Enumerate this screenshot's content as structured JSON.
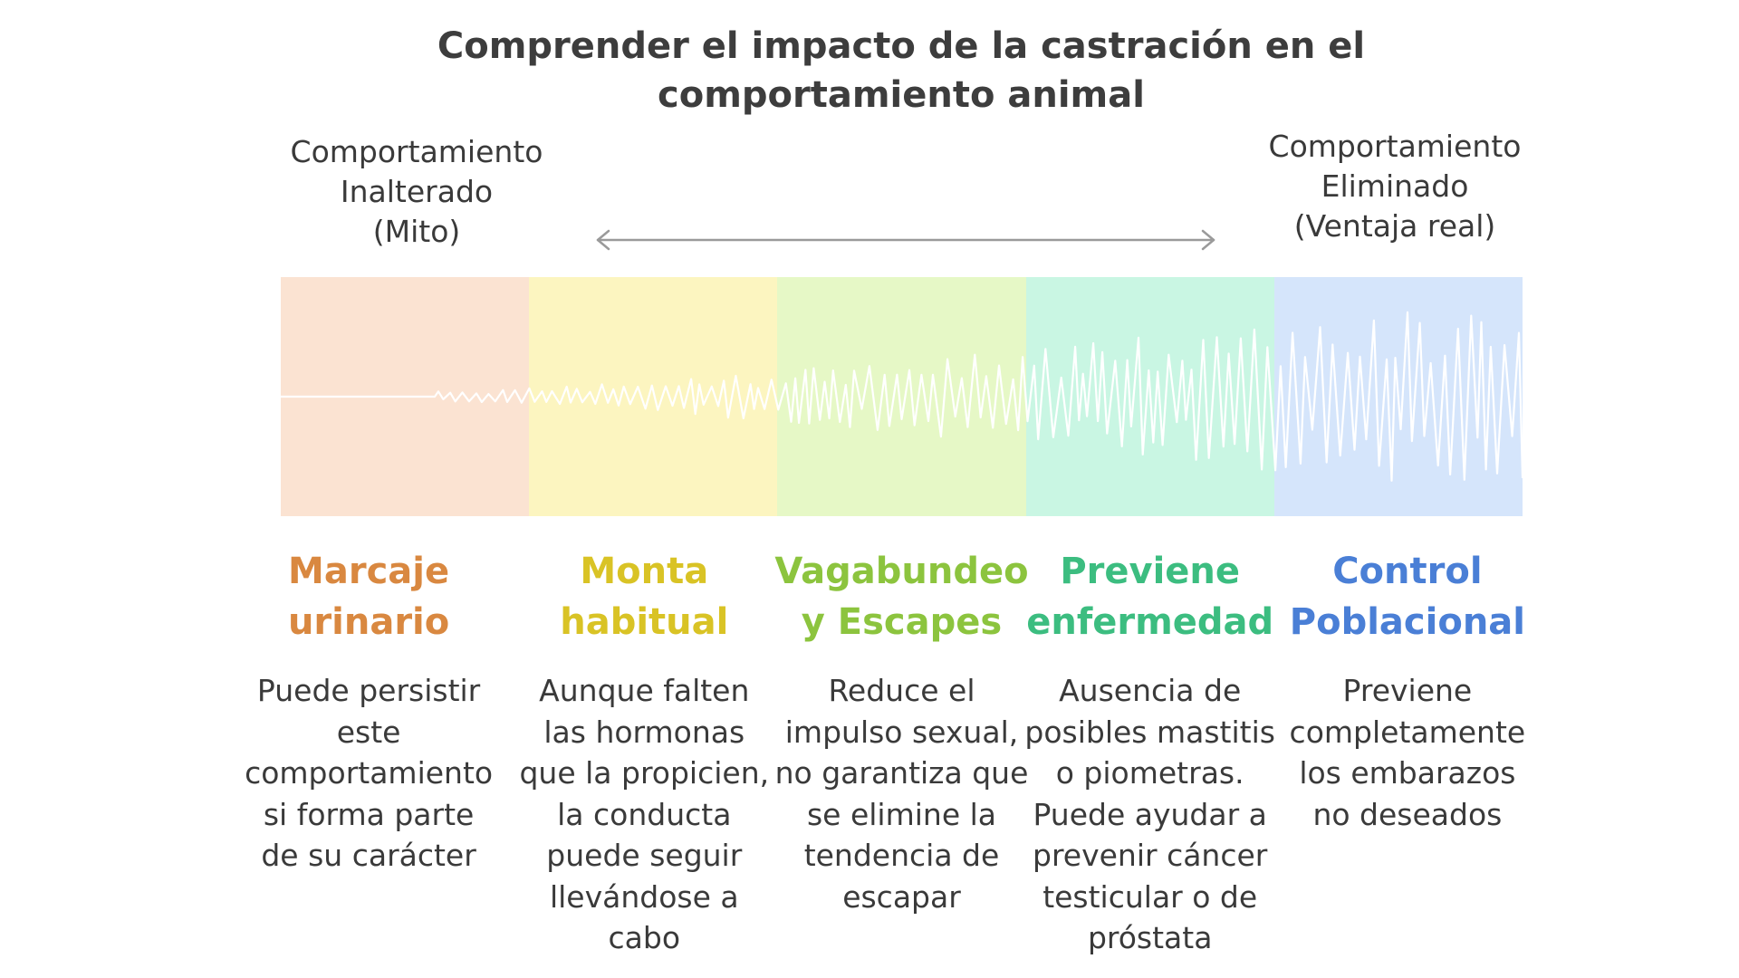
{
  "title": {
    "lines": [
      "Comprender el impacto de la castración en el",
      "comportamiento animal"
    ]
  },
  "spectrum": {
    "left_label": [
      "Comportamiento",
      "Inalterado",
      "(Mito)"
    ],
    "right_label": [
      "Comportamiento",
      "Eliminado",
      "(Ventaja real)"
    ]
  },
  "colors": {
    "arrow": "#9a9a9a",
    "wave": "#ffffff",
    "text": "#3a3a3a"
  },
  "segments": [
    {
      "bg": "#fbe3d2",
      "color": "#d98840",
      "heading": [
        "Marcaje",
        "urinario"
      ],
      "description": [
        "Puede persistir",
        "este",
        "comportamiento",
        "si forma parte",
        "de su carácter"
      ]
    },
    {
      "bg": "#fcf5c0",
      "color": "#d9c325",
      "heading": [
        "Monta",
        "habitual"
      ],
      "description": [
        "Aunque falten",
        "las hormonas",
        "que la propicien,",
        "la conducta",
        "puede seguir",
        "llevándose a",
        "cabo"
      ]
    },
    {
      "bg": "#e6f8c6",
      "color": "#8cc43e",
      "heading": [
        "Vagabundeo",
        "y Escapes"
      ],
      "description": [
        "Reduce el",
        "impulso sexual,",
        "no garantiza que",
        "se elimine la",
        "tendencia de",
        "escapar"
      ]
    },
    {
      "bg": "#c9f6e3",
      "color": "#3cbd80",
      "heading": [
        "Previene",
        "enfermedad"
      ],
      "description": [
        "Ausencia de",
        "posibles mastitis",
        "o piometras.",
        "Puede ayudar a",
        "prevenir cáncer",
        "testicular o de",
        "próstata"
      ]
    },
    {
      "bg": "#d5e5fb",
      "color": "#4a7fd6",
      "heading": [
        "Control",
        "Poblacional"
      ],
      "description": [
        "Previene",
        "completamente",
        "los embarazos",
        "no deseados"
      ]
    }
  ]
}
